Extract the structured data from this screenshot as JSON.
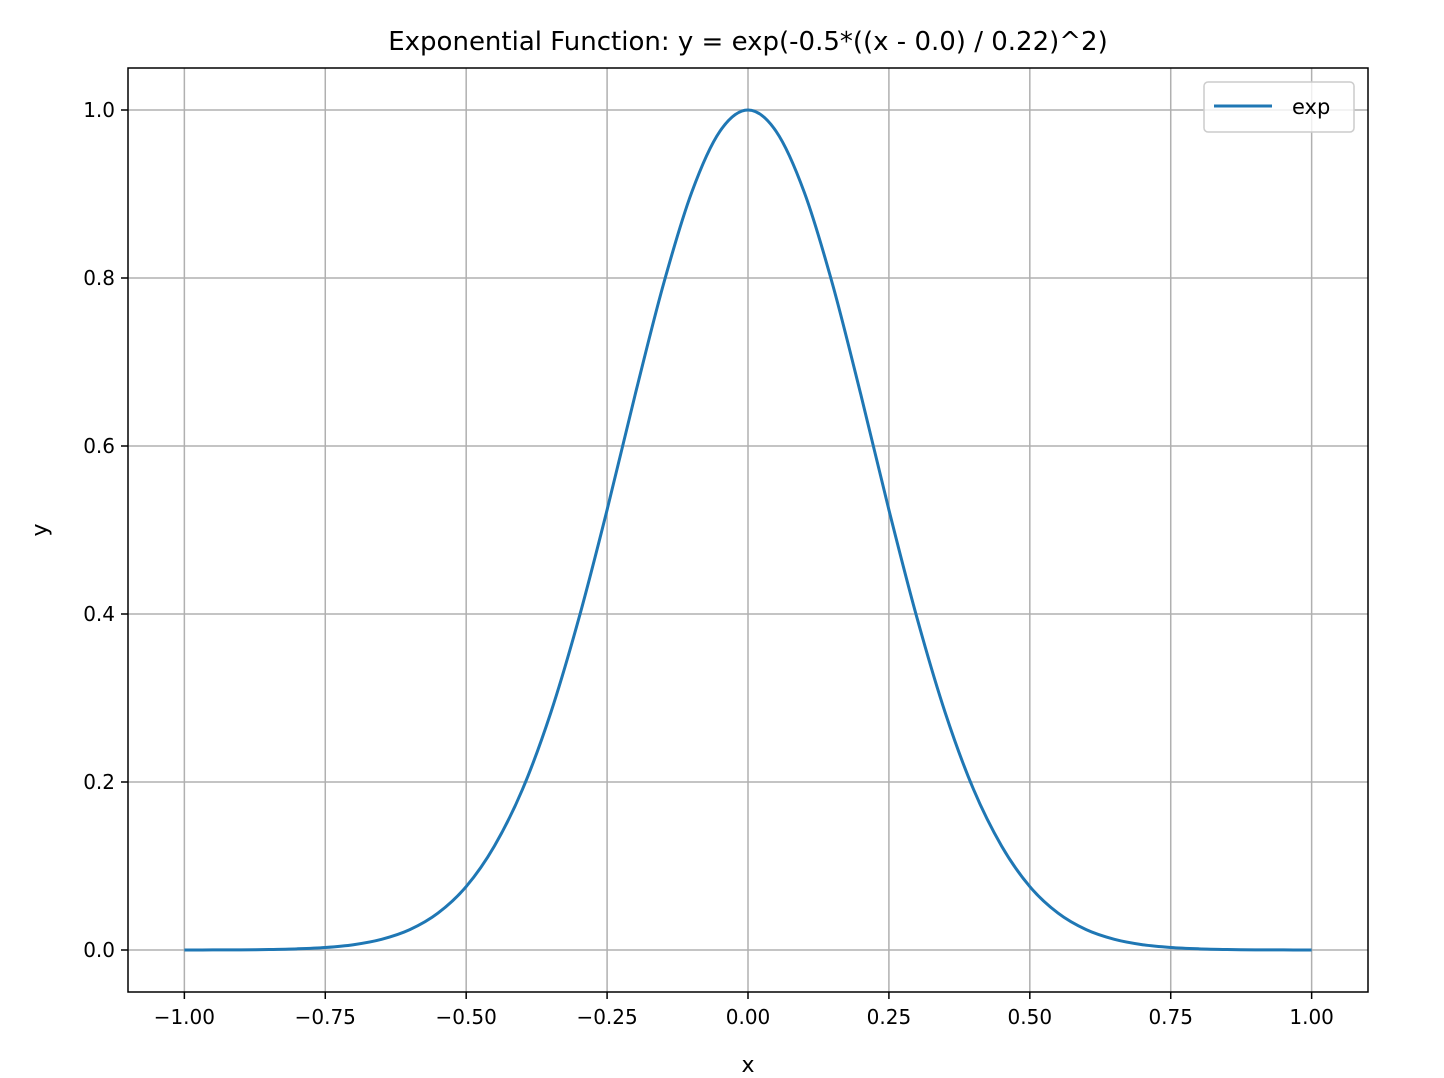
{
  "chart_data": {
    "type": "line",
    "title": "Exponential Function: y = exp(-0.5*((x - 0.0) / 0.22)^2)",
    "xlabel": "x",
    "ylabel": "y",
    "xlim": [
      -1.1,
      1.1
    ],
    "ylim": [
      -0.05,
      1.05
    ],
    "xticks": [
      -1.0,
      -0.75,
      -0.5,
      -0.25,
      0.0,
      0.25,
      0.5,
      0.75,
      1.0
    ],
    "xtick_labels": [
      "−1.00",
      "−0.75",
      "−0.50",
      "−0.25",
      "0.00",
      "0.25",
      "0.50",
      "0.75",
      "1.00"
    ],
    "yticks": [
      0.0,
      0.2,
      0.4,
      0.6,
      0.8,
      1.0
    ],
    "ytick_labels": [
      "0.0",
      "0.2",
      "0.4",
      "0.6",
      "0.8",
      "1.0"
    ],
    "grid": true,
    "legend_position": "top-right",
    "series": [
      {
        "name": "exp",
        "color": "#1f77b4",
        "x": [
          -1.0,
          -0.95,
          -0.9,
          -0.85,
          -0.8,
          -0.75,
          -0.7,
          -0.65,
          -0.6,
          -0.55,
          -0.5,
          -0.45,
          -0.4,
          -0.35,
          -0.3,
          -0.25,
          -0.2,
          -0.15,
          -0.1,
          -0.05,
          0.0,
          0.05,
          0.1,
          0.15,
          0.2,
          0.25,
          0.3,
          0.35,
          0.4,
          0.45,
          0.5,
          0.55,
          0.6,
          0.65,
          0.7,
          0.75,
          0.8,
          0.85,
          0.9,
          0.95,
          1.0
        ],
        "y": [
          0.0,
          0.0001,
          0.0002,
          0.0006,
          0.0014,
          0.003,
          0.0063,
          0.0127,
          0.0242,
          0.0439,
          0.0755,
          0.1237,
          0.1914,
          0.2823,
          0.395,
          0.524,
          0.6617,
          0.7926,
          0.9018,
          0.9745,
          1.0,
          0.9745,
          0.9018,
          0.7926,
          0.6617,
          0.524,
          0.395,
          0.2823,
          0.1914,
          0.1237,
          0.0755,
          0.0439,
          0.0242,
          0.0127,
          0.0063,
          0.003,
          0.0014,
          0.0006,
          0.0002,
          0.0001,
          0.0
        ]
      }
    ]
  }
}
